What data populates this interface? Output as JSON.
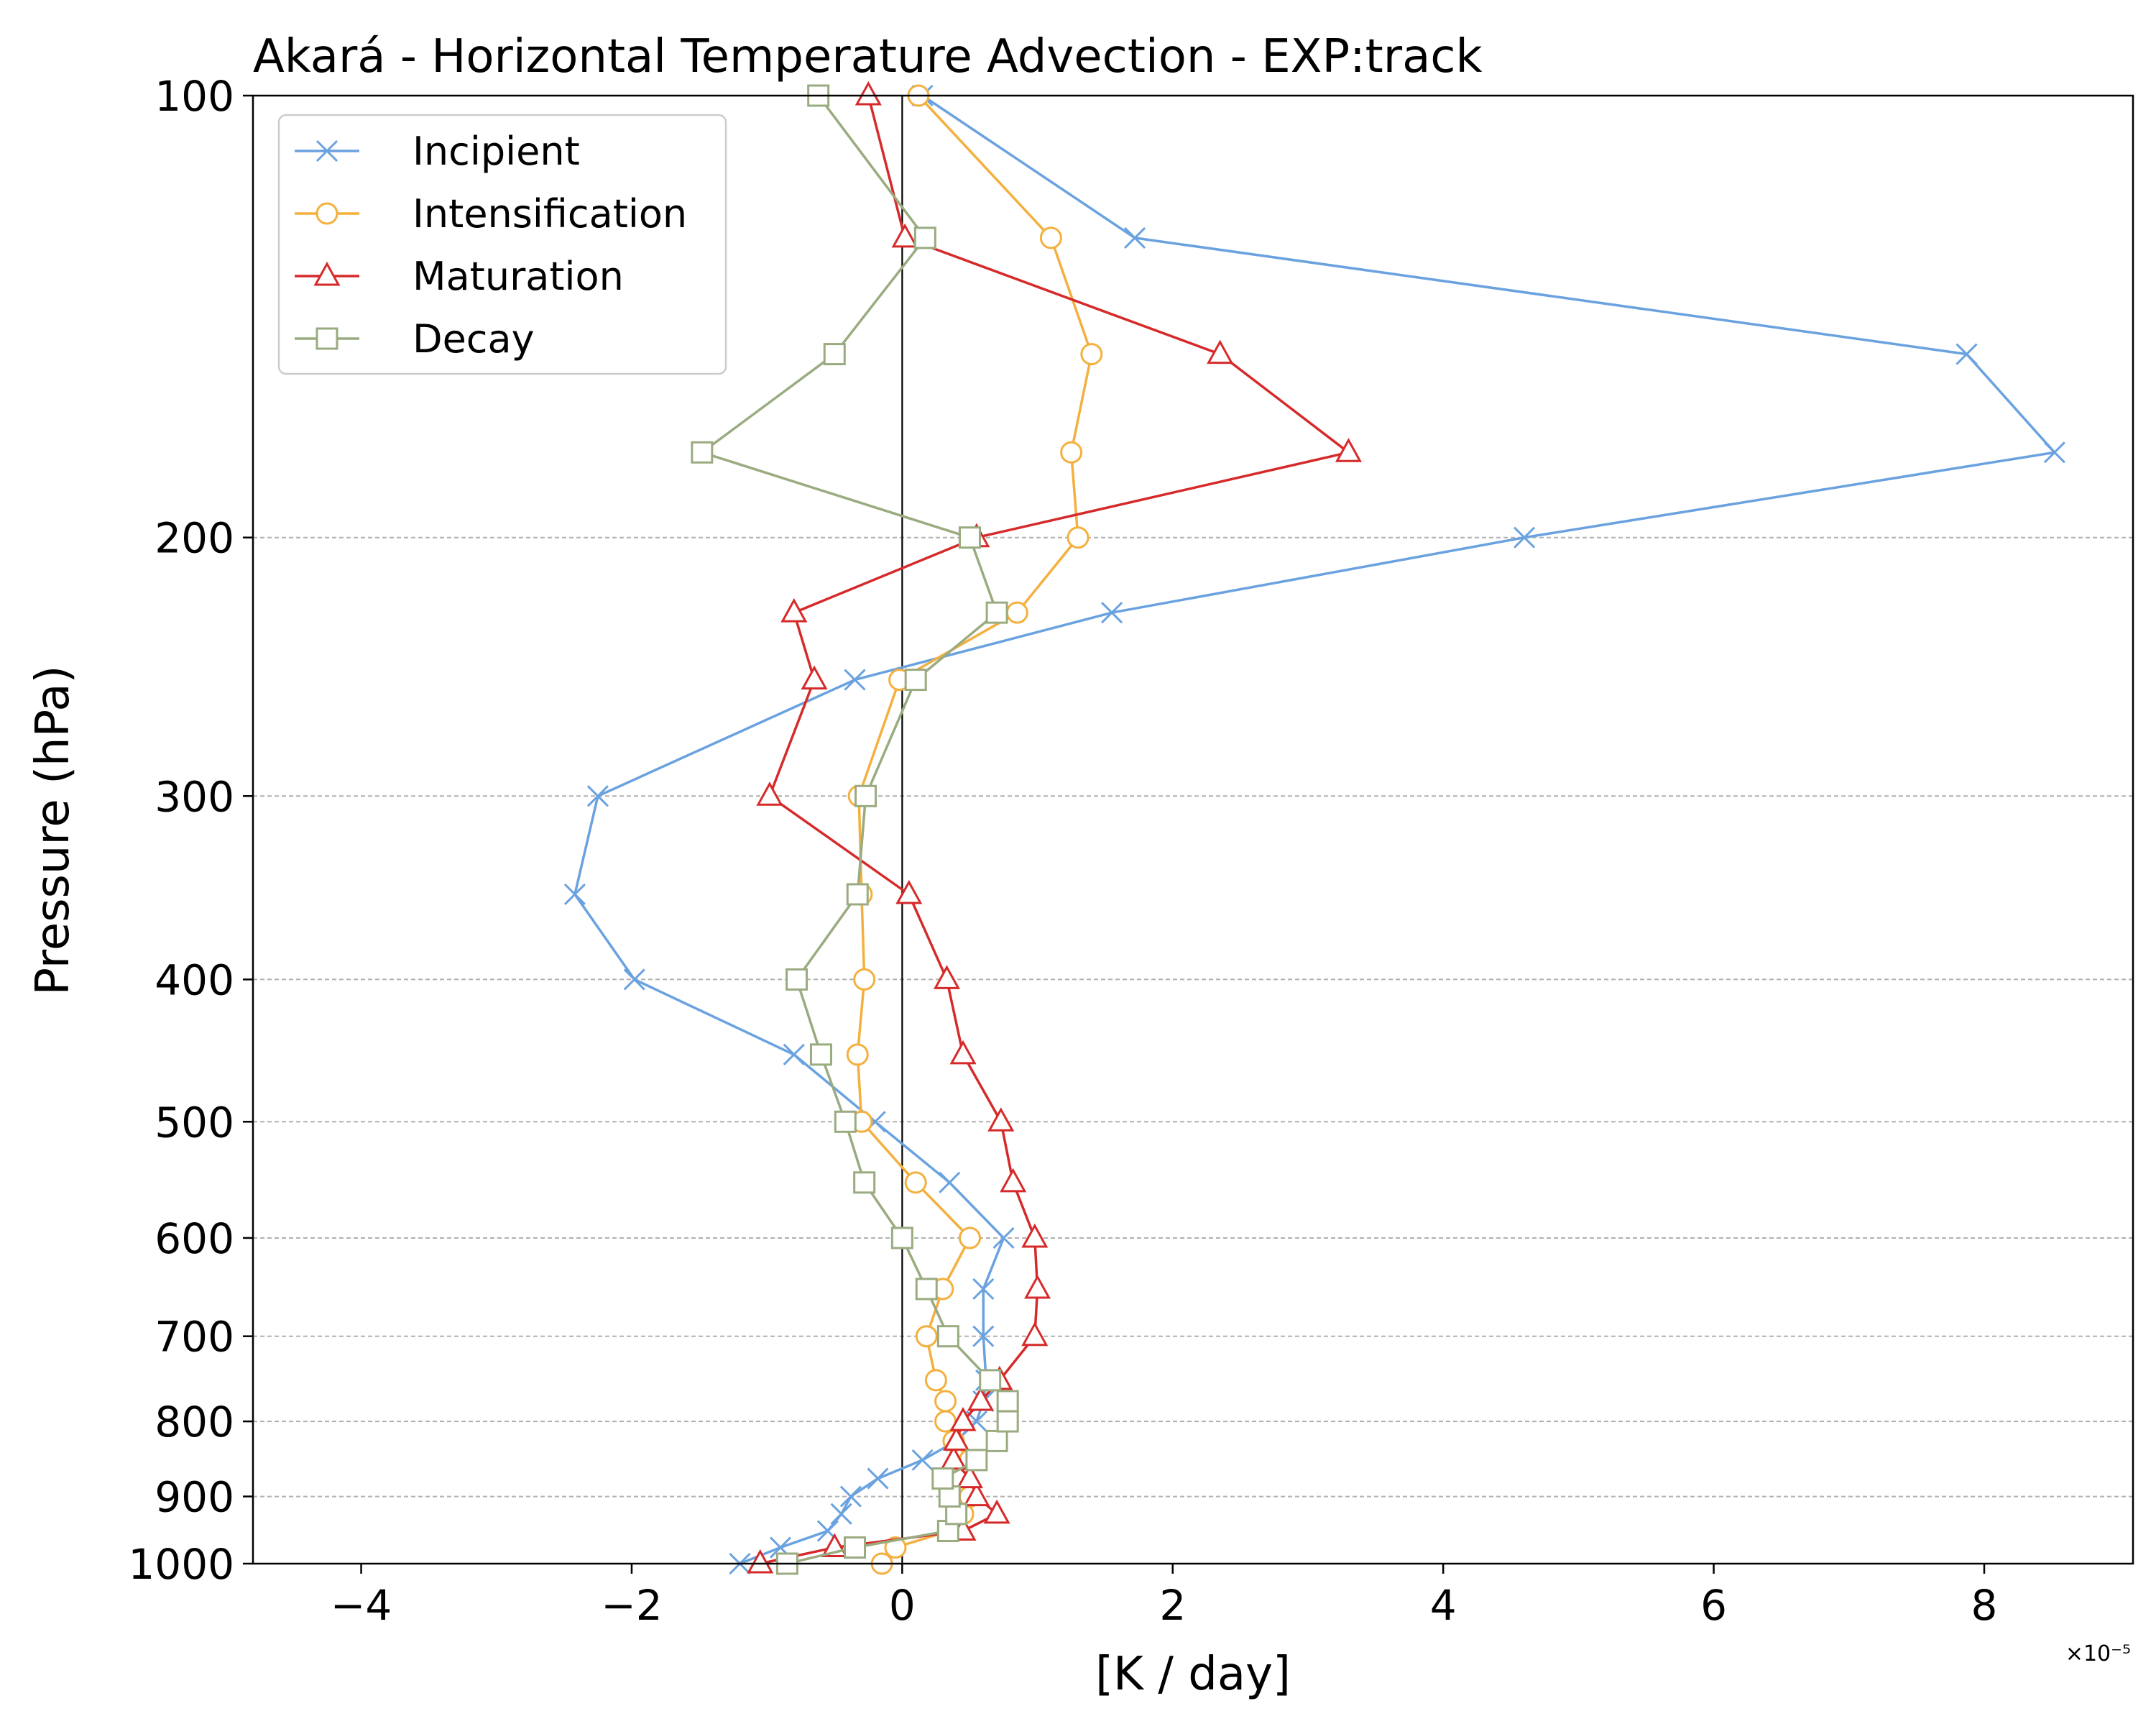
{
  "chart_data": {
    "type": "line",
    "title": "Akará - Horizontal Temperature Advection - EXP:track",
    "xlabel": "[K / day]",
    "ylabel": "Pressure (hPa)",
    "x_offset_label": "×10⁻⁵",
    "x_scale_factor": 1e-05,
    "xlim": [
      -4.8,
      9.1
    ],
    "ylim": [
      1000,
      100
    ],
    "y_scale": "log",
    "x_ticks": [
      -4,
      -2,
      0,
      2,
      4,
      6,
      8
    ],
    "x_tick_labels": [
      "−4",
      "−2",
      "0",
      "2",
      "4",
      "6",
      "8"
    ],
    "y_ticks": [
      100,
      200,
      300,
      400,
      500,
      600,
      700,
      800,
      900,
      1000
    ],
    "y_tick_labels": [
      "100",
      "200",
      "300",
      "400",
      "500",
      "600",
      "700",
      "800",
      "900",
      "1000"
    ],
    "grid": "horizontal dashed",
    "zero_line": true,
    "legend_position": "upper-left",
    "y": [
      1000,
      975,
      950,
      925,
      900,
      875,
      850,
      825,
      800,
      775,
      750,
      700,
      650,
      600,
      550,
      500,
      450,
      400,
      350,
      300,
      250,
      225,
      200,
      175,
      150,
      125,
      100
    ],
    "series": [
      {
        "name": "Incipient",
        "color": "#6aa2e0",
        "marker": "x",
        "values": [
          -1.2,
          -0.9,
          -0.55,
          -0.45,
          -0.38,
          -0.18,
          0.15,
          0.4,
          0.55,
          0.6,
          0.62,
          0.6,
          0.6,
          0.75,
          0.35,
          -0.2,
          -0.8,
          -1.98,
          -2.42,
          -2.25,
          -0.35,
          1.55,
          4.6,
          8.52,
          7.87,
          1.72,
          0.15
        ]
      },
      {
        "name": "Intensification",
        "color": "#f4b03e",
        "marker": "o",
        "values": [
          -0.15,
          -0.05,
          0.35,
          0.45,
          0.5,
          0.4,
          0.5,
          0.38,
          0.32,
          0.32,
          0.25,
          0.18,
          0.3,
          0.5,
          0.1,
          -0.3,
          -0.33,
          -0.28,
          -0.3,
          -0.32,
          -0.02,
          0.85,
          1.3,
          1.25,
          1.4,
          1.1,
          0.12
        ]
      },
      {
        "name": "Maturation",
        "color": "#d62a2a",
        "marker": "^",
        "values": [
          -1.05,
          -0.5,
          0.45,
          0.7,
          0.55,
          0.5,
          0.38,
          0.4,
          0.45,
          0.58,
          0.72,
          0.98,
          1.0,
          0.98,
          0.82,
          0.73,
          0.45,
          0.33,
          0.05,
          -0.98,
          -0.65,
          -0.8,
          0.55,
          3.3,
          2.35,
          0.02,
          -0.25
        ]
      },
      {
        "name": "Decay",
        "color": "#9aab80",
        "marker": "s",
        "values": [
          -0.85,
          -0.35,
          0.34,
          0.4,
          0.35,
          0.3,
          0.55,
          0.7,
          0.78,
          0.78,
          0.65,
          0.34,
          0.18,
          0.0,
          -0.28,
          -0.42,
          -0.6,
          -0.78,
          -0.33,
          -0.27,
          0.1,
          0.7,
          0.5,
          -1.48,
          -0.5,
          0.17,
          -0.62
        ]
      }
    ]
  }
}
